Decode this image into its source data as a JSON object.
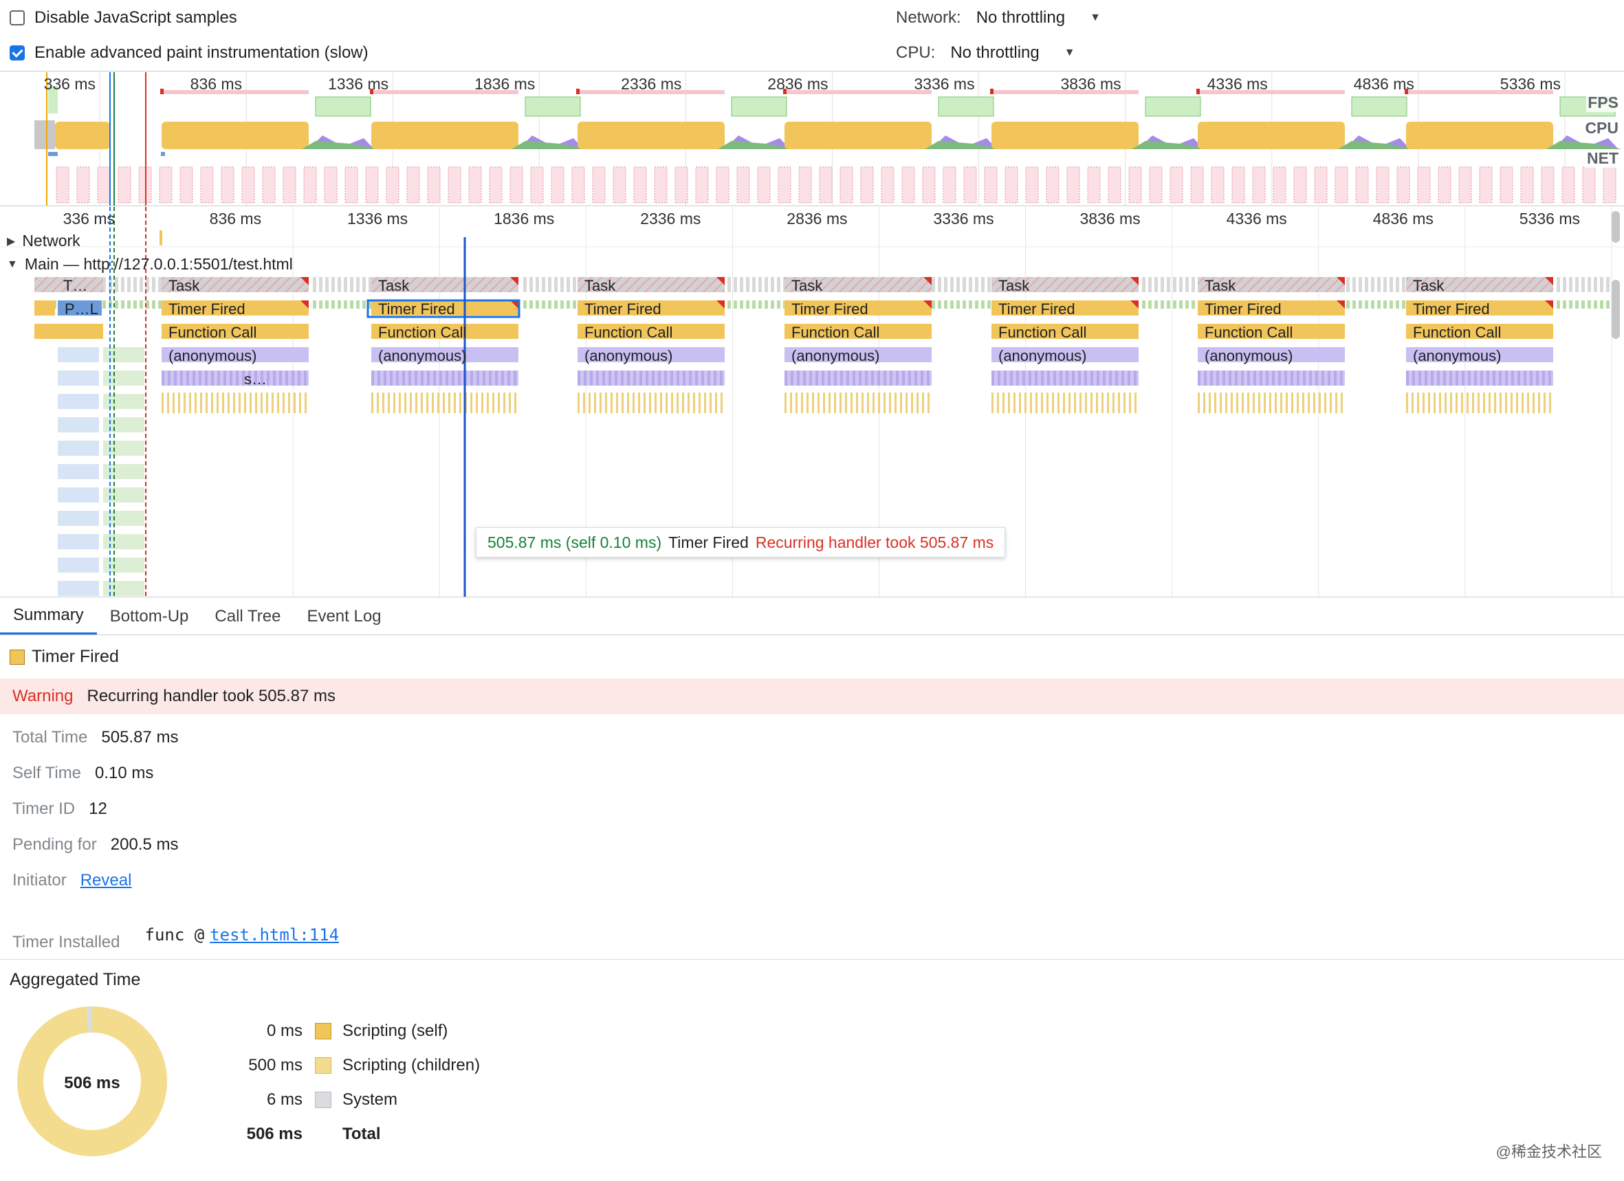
{
  "settings": {
    "disable_js_samples": {
      "label": "Disable JavaScript samples",
      "checked": false
    },
    "advanced_paint": {
      "label": "Enable advanced paint instrumentation (slow)",
      "checked": true
    },
    "network": {
      "label": "Network:",
      "value": "No throttling"
    },
    "cpu": {
      "label": "CPU:",
      "value": "No throttling"
    }
  },
  "overview": {
    "ticks": [
      "336 ms",
      "836 ms",
      "1336 ms",
      "1836 ms",
      "2336 ms",
      "2836 ms",
      "3336 ms",
      "3836 ms",
      "4336 ms",
      "4836 ms",
      "5336 ms"
    ],
    "lanes": {
      "fps": "FPS",
      "cpu": "CPU",
      "net": "NET"
    }
  },
  "flame": {
    "ticks": [
      "336 ms",
      "836 ms",
      "1336 ms",
      "1836 ms",
      "2336 ms",
      "2836 ms",
      "3336 ms",
      "3836 ms",
      "4336 ms",
      "4836 ms",
      "5336 ms"
    ],
    "network_track": "Network",
    "main_track": "Main — http://127.0.0.1:5501/test.html",
    "first_task_label": "T…",
    "first_timer_label": "P…L",
    "task_label": "Task",
    "timer_label": "Timer Fired",
    "function_label": "Function Call",
    "anon_label": "(anonymous)",
    "s_label": "s…",
    "tooltip": {
      "duration": "505.87 ms (self 0.10 ms)",
      "name": "Timer Fired",
      "warning": "Recurring handler took 505.87 ms"
    }
  },
  "colors": {
    "scripting": "#f2c55a",
    "scripting_children": "#f4dc8e",
    "system": "#dadce0",
    "anonymous": "#c9bff2",
    "task": "#cfcfcf",
    "fps": "#cdeec2",
    "net": "#f08a9a",
    "accent": "#1a73e8",
    "warning": "#d93025"
  },
  "tabs": [
    "Summary",
    "Bottom-Up",
    "Call Tree",
    "Event Log"
  ],
  "summary": {
    "title": "Timer Fired",
    "warning_label": "Warning",
    "warning_text": "Recurring handler took 505.87 ms",
    "total_time": {
      "label": "Total Time",
      "value": "505.87 ms"
    },
    "self_time": {
      "label": "Self Time",
      "value": "0.10 ms"
    },
    "timer_id": {
      "label": "Timer ID",
      "value": "12"
    },
    "pending_for": {
      "label": "Pending for",
      "value": "200.5 ms"
    },
    "initiator": {
      "label": "Initiator",
      "link": "Reveal"
    },
    "timer_installed": {
      "label": "Timer Installed",
      "func": "func @",
      "link": "test.html:114"
    }
  },
  "aggregated": {
    "title": "Aggregated Time",
    "total_center": "506 ms",
    "rows": [
      {
        "value": "0 ms",
        "label": "Scripting (self)"
      },
      {
        "value": "500 ms",
        "label": "Scripting (children)"
      },
      {
        "value": "6 ms",
        "label": "System"
      }
    ],
    "total": {
      "value": "506 ms",
      "label": "Total"
    },
    "breakdown_ms": {
      "scripting_self": 0.1,
      "scripting_children": 500,
      "system": 6
    }
  },
  "watermark": "@稀金技术社区"
}
